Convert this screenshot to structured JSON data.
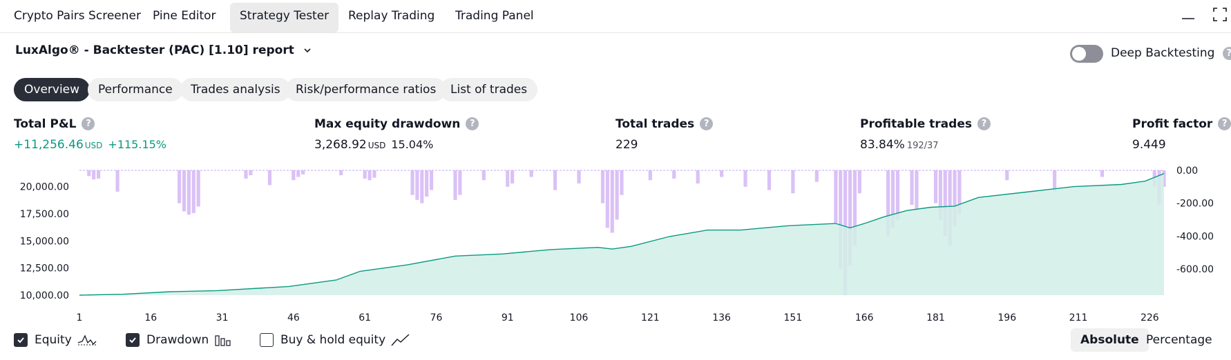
{
  "top_tabs": [
    {
      "label": "Crypto Pairs Screener",
      "active": false
    },
    {
      "label": "Pine Editor",
      "active": false
    },
    {
      "label": "Strategy Tester",
      "active": true
    },
    {
      "label": "Replay Trading",
      "active": false
    },
    {
      "label": "Trading Panel",
      "active": false
    }
  ],
  "window_icons": [
    "minimize-icon",
    "maximize-icon"
  ],
  "report": {
    "title": "LuxAlgo® - Backtester (PAC) [1.10] report",
    "deep_backtesting_label": "Deep Backtesting",
    "deep_backtesting_enabled": false
  },
  "sub_tabs": [
    {
      "label": "Overview",
      "active": true
    },
    {
      "label": "Performance",
      "active": false
    },
    {
      "label": "Trades analysis",
      "active": false
    },
    {
      "label": "Risk/performance ratios",
      "active": false
    },
    {
      "label": "List of trades",
      "active": false
    }
  ],
  "metrics": {
    "total_pnl": {
      "label": "Total P&L",
      "value": "+11,256.46",
      "unit": "USD",
      "percent": "+115.15%"
    },
    "max_drawdown": {
      "label": "Max equity drawdown",
      "value": "3,268.92",
      "unit": "USD",
      "percent": "15.04%"
    },
    "total_trades": {
      "label": "Total trades",
      "value": "229"
    },
    "profitable": {
      "label": "Profitable trades",
      "value": "83.84%",
      "ratio": "192/37"
    },
    "profit_factor": {
      "label": "Profit factor",
      "value": "9.449"
    }
  },
  "colors": {
    "equity": "#089981",
    "equity_fill": "#d2efe8",
    "drawdown": "#d4b6f5",
    "positive": "#089981"
  },
  "chart_data": {
    "type": "area",
    "x_ticks": [
      1,
      16,
      31,
      46,
      61,
      76,
      91,
      106,
      121,
      136,
      151,
      166,
      181,
      196,
      211,
      226
    ],
    "y_left_ticks": [
      "20,000.00",
      "17,500.00",
      "15,000.00",
      "12,500.00",
      "10,000.00"
    ],
    "y_right_ticks": [
      "0.00",
      "-200.00",
      "-400.00",
      "-600.00"
    ],
    "xlim": [
      1,
      229
    ],
    "ylim_left": [
      10000,
      21500
    ],
    "ylim_right": [
      -760,
      0
    ],
    "series": [
      {
        "name": "Equity",
        "axis": "left",
        "x": [
          1,
          10,
          20,
          30,
          45,
          55,
          60,
          70,
          80,
          90,
          100,
          110,
          113,
          117,
          125,
          133,
          140,
          150,
          160,
          163,
          166,
          170,
          175,
          180,
          185,
          190,
          200,
          210,
          220,
          225,
          229
        ],
        "values": [
          10000,
          10080,
          10320,
          10420,
          10800,
          11400,
          12200,
          12800,
          13600,
          13800,
          14200,
          14400,
          14250,
          14500,
          15400,
          16000,
          16000,
          16400,
          16600,
          16200,
          16600,
          17200,
          17800,
          18100,
          18200,
          19000,
          19500,
          20000,
          20200,
          20500,
          21200
        ]
      },
      {
        "name": "Drawdown",
        "axis": "right",
        "x": [
          3,
          4,
          5,
          9,
          22,
          23,
          24,
          25,
          26,
          36,
          37,
          41,
          46,
          47,
          48,
          56,
          61,
          62,
          63,
          71,
          72,
          73,
          74,
          75,
          80,
          81,
          86,
          91,
          92,
          96,
          101,
          106,
          111,
          112,
          113,
          114,
          115,
          121,
          126,
          131,
          136,
          141,
          146,
          151,
          156,
          160,
          161,
          162,
          163,
          164,
          165,
          171,
          172,
          173,
          176,
          177,
          181,
          182,
          183,
          184,
          185,
          186,
          196,
          206,
          216,
          227,
          228,
          229
        ],
        "values": [
          -35,
          -55,
          -50,
          -130,
          -200,
          -250,
          -270,
          -260,
          -220,
          -50,
          -30,
          -90,
          -60,
          -40,
          -25,
          -30,
          -50,
          -60,
          -45,
          -150,
          -180,
          -200,
          -160,
          -120,
          -180,
          -150,
          -60,
          -100,
          -80,
          -40,
          -120,
          -80,
          -200,
          -350,
          -380,
          -300,
          -150,
          -60,
          -50,
          -80,
          -40,
          -100,
          -120,
          -140,
          -70,
          -320,
          -600,
          -760,
          -580,
          -460,
          -140,
          -400,
          -350,
          -300,
          -210,
          -240,
          -200,
          -300,
          -400,
          -460,
          -340,
          -270,
          -60,
          -130,
          -40,
          -100,
          -210,
          -100
        ]
      }
    ]
  },
  "legend": {
    "equity": {
      "label": "Equity",
      "checked": true
    },
    "drawdown": {
      "label": "Drawdown",
      "checked": true
    },
    "buy_hold": {
      "label": "Buy & hold equity",
      "checked": false
    }
  },
  "modes": [
    {
      "label": "Absolute",
      "active": true
    },
    {
      "label": "Percentage",
      "active": false
    }
  ]
}
